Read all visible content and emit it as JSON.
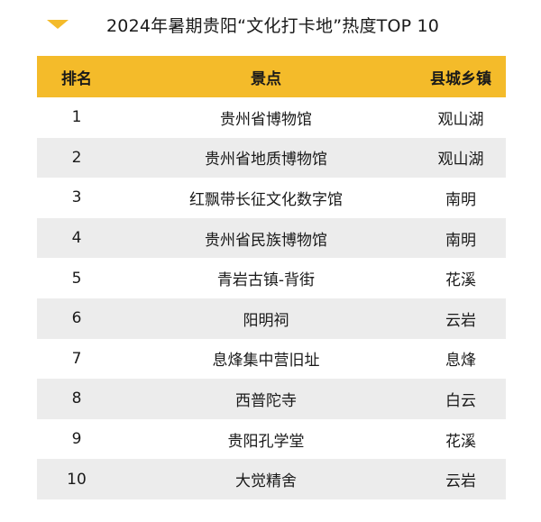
{
  "title": "2024年暑期贵阳“文化打卡地”热度TOP 10",
  "colors": {
    "accent": "#f4bb2a",
    "stripe": "#ececec"
  },
  "headers": {
    "rank": "排名",
    "spot": "景点",
    "district": "县城乡镇"
  },
  "rows": [
    {
      "rank": "1",
      "spot": "贵州省博物馆",
      "district": "观山湖"
    },
    {
      "rank": "2",
      "spot": "贵州省地质博物馆",
      "district": "观山湖"
    },
    {
      "rank": "3",
      "spot": "红飘带长征文化数字馆",
      "district": "南明"
    },
    {
      "rank": "4",
      "spot": "贵州省民族博物馆",
      "district": "南明"
    },
    {
      "rank": "5",
      "spot": "青岩古镇-背街",
      "district": "花溪"
    },
    {
      "rank": "6",
      "spot": "阳明祠",
      "district": "云岩"
    },
    {
      "rank": "7",
      "spot": "息烽集中营旧址",
      "district": "息烽"
    },
    {
      "rank": "8",
      "spot": "西普陀寺",
      "district": "白云"
    },
    {
      "rank": "9",
      "spot": "贵阳孔学堂",
      "district": "花溪"
    },
    {
      "rank": "10",
      "spot": "大觉精舍",
      "district": "云岩"
    }
  ]
}
